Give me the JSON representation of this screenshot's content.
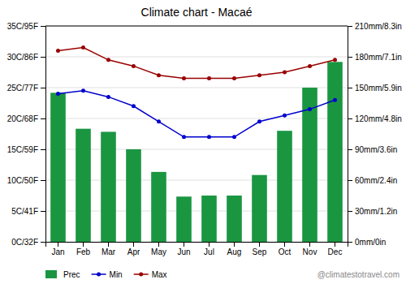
{
  "chart_data": {
    "type": "bar",
    "title": "Climate chart - Macaé",
    "categories": [
      "Jan",
      "Feb",
      "Mar",
      "Apr",
      "May",
      "Jun",
      "Jul",
      "Aug",
      "Sep",
      "Oct",
      "Nov",
      "Dec"
    ],
    "series": [
      {
        "name": "Prec",
        "type": "bar",
        "axis": "y2",
        "color": "#1a9641",
        "values": [
          145,
          110,
          107,
          90,
          68,
          44,
          45,
          45,
          65,
          108,
          150,
          175
        ]
      },
      {
        "name": "Min",
        "type": "line",
        "marker": "circle",
        "color": "#0000cc",
        "values": [
          24,
          24.5,
          23.5,
          22,
          19.5,
          17,
          17,
          17,
          19.5,
          20.5,
          21.5,
          23
        ]
      },
      {
        "name": "Max",
        "type": "line",
        "marker": "circle",
        "color": "#990000",
        "values": [
          31,
          31.5,
          29.5,
          28.5,
          27,
          26.5,
          26.5,
          26.5,
          27,
          27.5,
          28.5,
          29.5
        ]
      }
    ],
    "ylim": [
      0,
      35
    ],
    "yticks": [
      {
        "value": 0,
        "label": "0C/32F"
      },
      {
        "value": 5,
        "label": "5C/41F"
      },
      {
        "value": 10,
        "label": "10C/50F"
      },
      {
        "value": 15,
        "label": "15C/59F"
      },
      {
        "value": 20,
        "label": "20C/68F"
      },
      {
        "value": 25,
        "label": "25C/77F"
      },
      {
        "value": 30,
        "label": "30C/86F"
      },
      {
        "value": 35,
        "label": "35C/95F"
      }
    ],
    "y2lim": [
      0,
      210
    ],
    "y2ticks": [
      {
        "value": 0,
        "label": "0mm/0in"
      },
      {
        "value": 30,
        "label": "30mm/1.2in"
      },
      {
        "value": 60,
        "label": "60mm/2.4in"
      },
      {
        "value": 90,
        "label": "90mm/3.6in"
      },
      {
        "value": 120,
        "label": "120mm/4.8in"
      },
      {
        "value": 150,
        "label": "150mm/5.9in"
      },
      {
        "value": 180,
        "label": "180mm/7.1in"
      },
      {
        "value": 210,
        "label": "210mm/8.3in"
      }
    ],
    "grid": true,
    "legend": "lower left",
    "annotations": [
      "@climatestotravel.com"
    ]
  }
}
